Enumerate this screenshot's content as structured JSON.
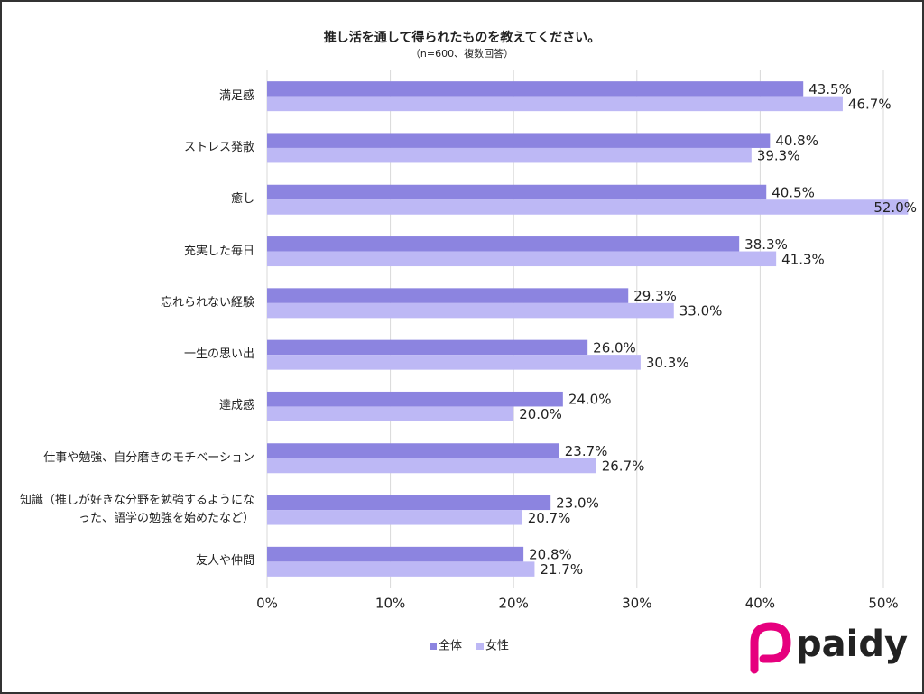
{
  "chart_data": {
    "type": "bar",
    "orientation": "horizontal",
    "title": "推し活を通して得られたものを教えてください。",
    "subtitle": "（n=600、複数回答）",
    "categories": [
      "満足感",
      "ストレス発散",
      "癒し",
      "充実した毎日",
      "忘れられない経験",
      "一生の思い出",
      "達成感",
      "仕事や勉強、自分磨きのモチベーション",
      "知識（推しが好きな分野を勉強するようになった、語学の勉強を始めたなど）",
      "友人や仲間"
    ],
    "series": [
      {
        "name": "全体",
        "color": "#8c84e0",
        "values": [
          43.5,
          40.8,
          40.5,
          38.3,
          29.3,
          26.0,
          24.0,
          23.7,
          23.0,
          20.8
        ],
        "value_labels": [
          "43.5%",
          "40.8%",
          "40.5%",
          "38.3%",
          "29.3%",
          "26.0%",
          "24.0%",
          "23.7%",
          "23.0%",
          "20.8%"
        ]
      },
      {
        "name": "女性",
        "color": "#bdb8f5",
        "values": [
          46.7,
          39.3,
          52.0,
          41.3,
          33.0,
          30.3,
          20.0,
          26.7,
          20.7,
          21.7
        ],
        "value_labels": [
          "46.7%",
          "39.3%",
          "52.0%",
          "41.3%",
          "33.0%",
          "30.3%",
          "20.0%",
          "26.7%",
          "20.7%",
          "21.7%"
        ]
      }
    ],
    "xlim": [
      0,
      50
    ],
    "xticks": [
      {
        "value": 0,
        "label": "0%"
      },
      {
        "value": 10,
        "label": "10%"
      },
      {
        "value": 20,
        "label": "20%"
      },
      {
        "value": 30,
        "label": "30%"
      },
      {
        "value": 40,
        "label": "40%"
      },
      {
        "value": 50,
        "label": "50%"
      }
    ],
    "grid": true,
    "legend": "bottom"
  },
  "logo": "paidy"
}
